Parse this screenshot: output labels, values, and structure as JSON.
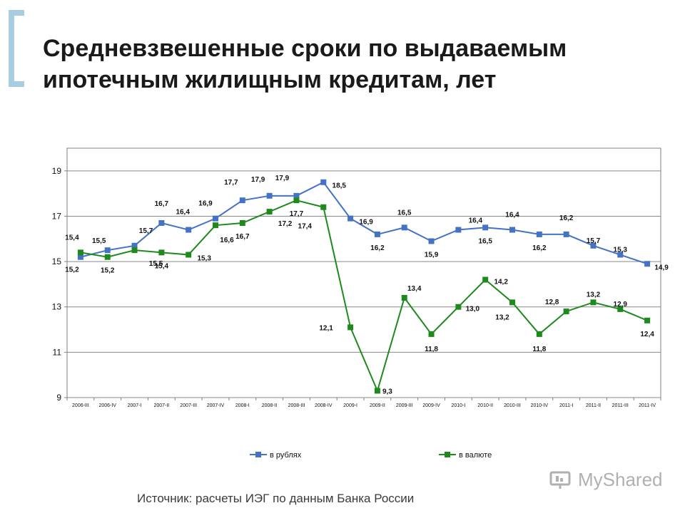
{
  "title_line1": "Средневзвешенные сроки по выдаваемым",
  "title_line2": "ипотечным жилищным кредитам, лет",
  "source": "Источник: расчеты ИЭГ по данным Банка России",
  "watermark": "MyShared",
  "colors": {
    "rub": "#4472c4",
    "fx": "#1e8a1e",
    "grid": "#888888"
  },
  "chart_data": {
    "type": "line",
    "title": "",
    "ylim": [
      9,
      20
    ],
    "yticks": [
      9,
      11,
      13,
      15,
      17,
      19
    ],
    "categories": [
      "2006-III",
      "2006-IV",
      "2007-I",
      "2007-II",
      "2007-III",
      "2007-IV",
      "2008-I",
      "2008-II",
      "2008-III",
      "2008-IV",
      "2009-I",
      "2009-II",
      "2009-III",
      "2009-IV",
      "2010-I",
      "2010-II",
      "2010-III",
      "2010-IV",
      "2011-I",
      "2011-II",
      "2011-III",
      "2011-IV"
    ],
    "series": [
      {
        "name": "в рублях",
        "color": "#4472c4",
        "values": [
          15.2,
          15.5,
          15.7,
          16.7,
          16.4,
          16.9,
          17.7,
          17.9,
          17.9,
          18.5,
          16.9,
          16.2,
          16.5,
          15.9,
          16.4,
          16.5,
          16.4,
          16.2,
          16.2,
          15.7,
          15.3,
          14.9
        ],
        "labels": [
          "15,2",
          "15,5",
          "15,7",
          "16,7",
          "16,4",
          "16,9",
          "17,7",
          "17,9",
          "17,9",
          "18,5",
          "16,9",
          "16,2",
          "16,5",
          "15,9",
          "16,4",
          "16,5",
          "16,4",
          "16,2",
          "16,2",
          "15,7",
          "15,3",
          "14,9"
        ]
      },
      {
        "name": "в валюте",
        "color": "#1e8a1e",
        "values": [
          15.4,
          15.2,
          15.5,
          15.4,
          15.3,
          16.6,
          16.7,
          17.2,
          17.7,
          17.4,
          12.1,
          9.3,
          13.4,
          11.8,
          13.0,
          14.2,
          13.2,
          11.8,
          12.8,
          13.2,
          12.9,
          12.4
        ],
        "labels": [
          "15,4",
          "15,2",
          "15,5",
          "15,4",
          "15,3",
          "16,6",
          "16,7",
          "17,2",
          "17,7",
          "17,4",
          "12,1",
          "9,3",
          "13,4",
          "11,8",
          "13,0",
          "14,2",
          "13,2",
          "11,8",
          "12,8",
          "13,2",
          "12,9",
          "12,4"
        ]
      }
    ],
    "legend": "bottom"
  }
}
